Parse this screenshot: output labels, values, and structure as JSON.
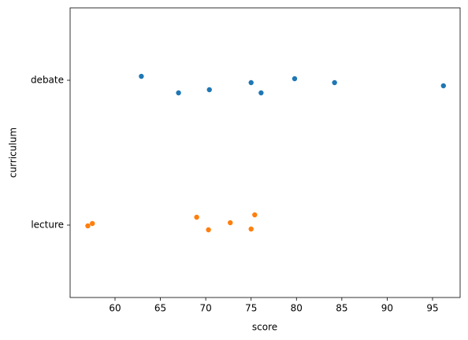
{
  "chart_data": {
    "type": "strip",
    "x_label": "score",
    "y_label": "curriculum",
    "categories": [
      "debate",
      "lecture"
    ],
    "series": [
      {
        "color": "#1f77b4",
        "values": [
          62.9,
          67.0,
          70.4,
          75.0,
          76.1,
          79.8,
          84.2,
          96.2
        ]
      },
      {
        "color": "#ff7f0e",
        "values": [
          57.0,
          57.5,
          69.0,
          70.3,
          72.7,
          75.0,
          75.4
        ]
      }
    ],
    "xlim": [
      55.05,
      98.04
    ],
    "xticks": [
      60,
      65,
      70,
      75,
      80,
      85,
      90,
      95
    ]
  }
}
